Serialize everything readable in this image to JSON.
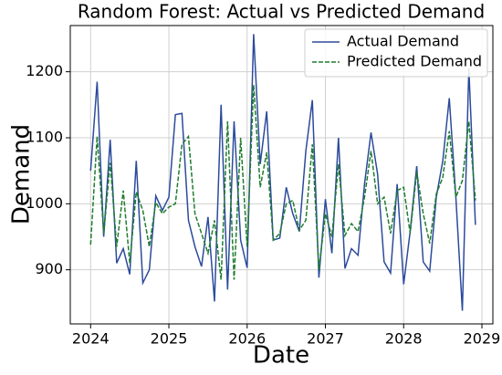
{
  "chart_data": {
    "type": "line",
    "title": "Random Forest: Actual vs Predicted Demand",
    "xlabel": "Date",
    "ylabel": "Demand",
    "x": [
      2024,
      2024.083,
      2024.167,
      2024.25,
      2024.333,
      2024.417,
      2024.5,
      2024.583,
      2024.667,
      2024.75,
      2024.833,
      2024.917,
      2025,
      2025.083,
      2025.167,
      2025.25,
      2025.333,
      2025.417,
      2025.5,
      2025.583,
      2025.667,
      2025.75,
      2025.833,
      2025.917,
      2026,
      2026.083,
      2026.167,
      2026.25,
      2026.333,
      2026.417,
      2026.5,
      2026.583,
      2026.667,
      2026.75,
      2026.833,
      2026.917,
      2027,
      2027.083,
      2027.167,
      2027.25,
      2027.333,
      2027.417,
      2027.5,
      2027.583,
      2027.667,
      2027.75,
      2027.833,
      2027.917,
      2028,
      2028.083,
      2028.167,
      2028.25,
      2028.333,
      2028.417,
      2028.5,
      2028.583,
      2028.667,
      2028.75,
      2028.833,
      2028.917
    ],
    "series": [
      {
        "name": "Actual Demand",
        "color": "#2b4b9b",
        "dashed": false,
        "values": [
          1050,
          1185,
          950,
          1097,
          910,
          932,
          893,
          1065,
          880,
          900,
          1012,
          990,
          1010,
          1135,
          1137,
          975,
          935,
          905,
          980,
          852,
          1150,
          870,
          1125,
          945,
          903,
          1257,
          1060,
          1140,
          945,
          948,
          1025,
          985,
          958,
          1080,
          1157,
          888,
          1007,
          925,
          1100,
          902,
          932,
          922,
          1030,
          1108,
          1045,
          912,
          895,
          1030,
          878,
          958,
          1057,
          912,
          898,
          1010,
          1065,
          1160,
          1010,
          838,
          1205,
          968
        ]
      },
      {
        "name": "Predicted Demand",
        "color": "#1e7d2e",
        "dashed": true,
        "values": [
          938,
          1102,
          955,
          1062,
          935,
          1020,
          910,
          1018,
          990,
          935,
          1002,
          985,
          995,
          1000,
          1090,
          1102,
          985,
          955,
          925,
          975,
          885,
          1125,
          885,
          1100,
          935,
          1180,
          1025,
          1078,
          945,
          955,
          1000,
          1005,
          960,
          975,
          1090,
          900,
          985,
          950,
          1060,
          952,
          970,
          958,
          1010,
          1080,
          1000,
          1010,
          955,
          1020,
          1025,
          955,
          1048,
          985,
          940,
          1015,
          1040,
          1110,
          1010,
          1035,
          1125,
          1005
        ]
      }
    ],
    "xlim": [
      2023.74,
      2029.14
    ],
    "xticks": [
      2024,
      2025,
      2026,
      2027,
      2028,
      2029
    ],
    "ylim": [
      818,
      1270
    ],
    "yticks": [
      900,
      1000,
      1100,
      1200
    ],
    "grid": true,
    "legend": "upper right"
  }
}
